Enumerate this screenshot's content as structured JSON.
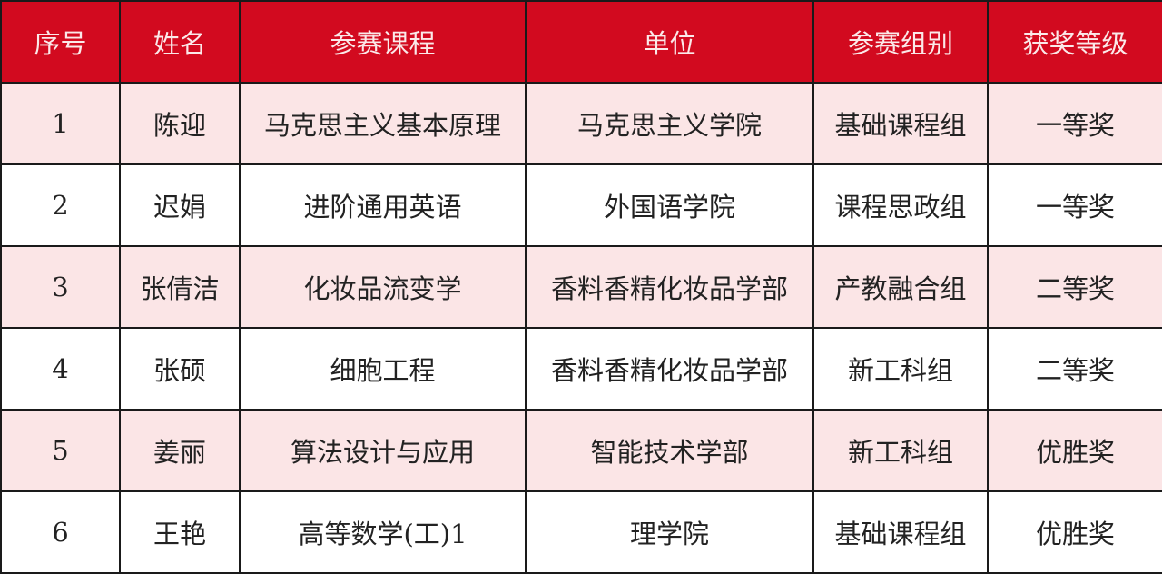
{
  "table": {
    "headers": [
      "序号",
      "姓名",
      "参赛课程",
      "单位",
      "参赛组别",
      "获奖等级"
    ],
    "rows": [
      [
        "1",
        "陈迎",
        "马克思主义基本原理",
        "马克思主义学院",
        "基础课程组",
        "一等奖"
      ],
      [
        "2",
        "迟娟",
        "进阶通用英语",
        "外国语学院",
        "课程思政组",
        "一等奖"
      ],
      [
        "3",
        "张倩洁",
        "化妆品流变学",
        "香料香精化妆品学部",
        "产教融合组",
        "二等奖"
      ],
      [
        "4",
        "张硕",
        "细胞工程",
        "香料香精化妆品学部",
        "新工科组",
        "二等奖"
      ],
      [
        "5",
        "姜丽",
        "算法设计与应用",
        "智能技术学部",
        "新工科组",
        "优胜奖"
      ],
      [
        "6",
        "王艳",
        "高等数学(工)1",
        "理学院",
        "基础课程组",
        "优胜奖"
      ]
    ]
  },
  "colors": {
    "header_bg": "#d20a1f",
    "header_text": "#fbe9e9",
    "stripe": "#fbe5e6"
  }
}
